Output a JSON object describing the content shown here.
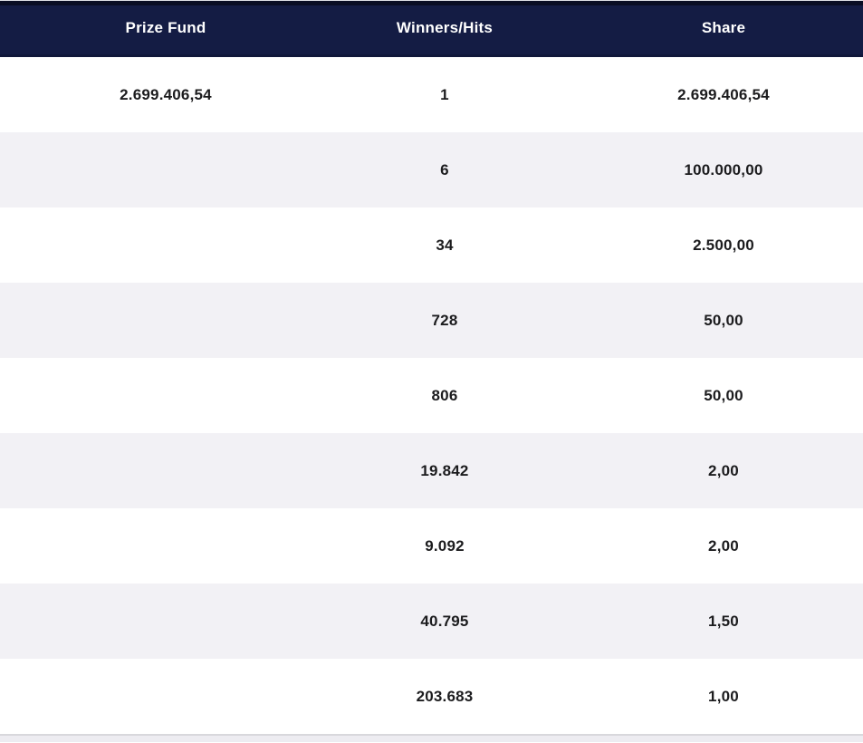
{
  "brand": {
    "header_bg": "#141c44",
    "header_top_strip": "#0a0e24",
    "header_text": "#ffffff",
    "row_bg": "#ffffff",
    "row_alt_bg": "#f2f1f5",
    "data_text": "#1c1c1e"
  },
  "table": {
    "columns": {
      "prize_fund": "Prize Fund",
      "winners": "Winners/Hits",
      "share": "Share"
    },
    "rows": [
      {
        "prize_fund": "2.699.406,54",
        "winners": "1",
        "share": "2.699.406,54"
      },
      {
        "prize_fund": "",
        "winners": "6",
        "share": "100.000,00"
      },
      {
        "prize_fund": "",
        "winners": "34",
        "share": "2.500,00"
      },
      {
        "prize_fund": "",
        "winners": "728",
        "share": "50,00"
      },
      {
        "prize_fund": "",
        "winners": "806",
        "share": "50,00"
      },
      {
        "prize_fund": "",
        "winners": "19.842",
        "share": "2,00"
      },
      {
        "prize_fund": "",
        "winners": "9.092",
        "share": "2,00"
      },
      {
        "prize_fund": "",
        "winners": "40.795",
        "share": "1,50"
      },
      {
        "prize_fund": "",
        "winners": "203.683",
        "share": "1,00"
      }
    ]
  }
}
